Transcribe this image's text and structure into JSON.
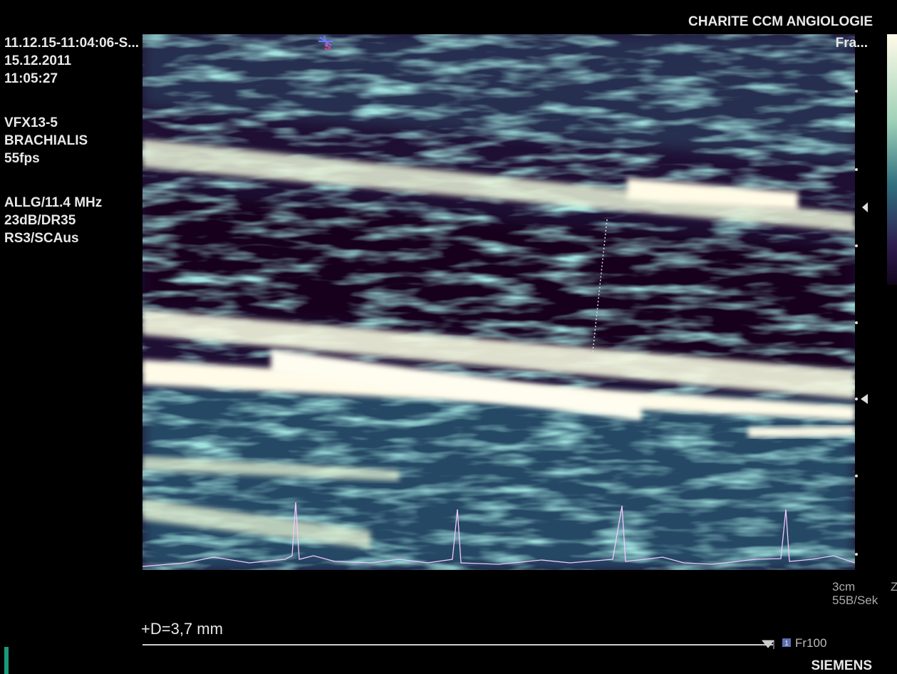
{
  "header": {
    "institution": "CHARITE CCM ANGIOLOGIE",
    "frame_label": "Fra...",
    "marker": "S"
  },
  "info": {
    "study": "11.12.15-11:04:06-S...",
    "date": "15.12.2011",
    "time": "11:05:27",
    "probe": "VFX13-5",
    "preset": "BRACHIALIS",
    "frame_rate": "55fps",
    "frequency": "ALLG/11.4 MHz",
    "gain": "23dB/DR35",
    "settings": "RS3/SCAus"
  },
  "scale": {
    "depth": "3cm",
    "sweep": "55B/Sek",
    "edge": "Z"
  },
  "measurement": {
    "text": "+D=3,7 mm"
  },
  "footer": {
    "badge": "1",
    "frame": "Fr100",
    "brand": "SIEMENS"
  }
}
